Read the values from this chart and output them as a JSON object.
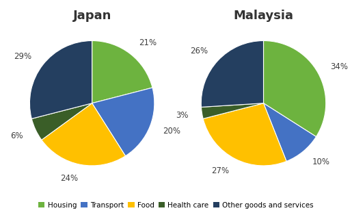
{
  "japan": {
    "title": "Japan",
    "values": [
      21,
      20,
      24,
      6,
      29
    ],
    "labels": [
      "21%",
      "20%",
      "24%",
      "6%",
      "29%"
    ]
  },
  "malaysia": {
    "title": "Malaysia",
    "values": [
      34,
      10,
      27,
      3,
      26
    ],
    "labels": [
      "34%",
      "10%",
      "27%",
      "3%",
      "26%"
    ]
  },
  "categories": [
    "Housing",
    "Transport",
    "Food",
    "Health care",
    "Other goods and services"
  ],
  "colors": [
    "#6db33f",
    "#4472c4",
    "#ffc000",
    "#3a5e28",
    "#243f60"
  ],
  "startangle": 90,
  "label_distance": 1.22,
  "title_fontsize": 13,
  "label_fontsize": 8.5,
  "legend_fontsize": 7.5
}
